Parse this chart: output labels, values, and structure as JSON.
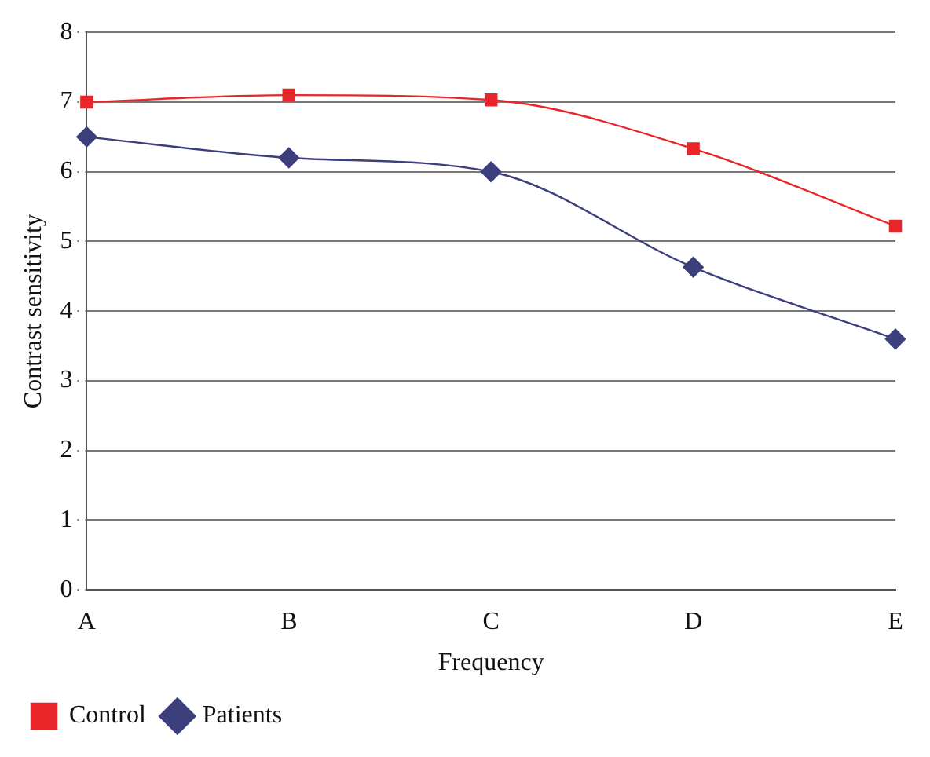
{
  "chart_data": {
    "type": "line",
    "xlabel": "Frequency",
    "ylabel": "Contrast sensitivity",
    "categories": [
      "A",
      "B",
      "C",
      "D",
      "E"
    ],
    "series": [
      {
        "name": "Control",
        "color": "#e8262a",
        "marker": "square",
        "values": [
          7.0,
          7.1,
          7.03,
          6.33,
          5.22
        ]
      },
      {
        "name": "Patients",
        "color": "#3c3f7c",
        "marker": "diamond",
        "values": [
          6.5,
          6.2,
          6.0,
          4.63,
          3.6
        ]
      }
    ],
    "ylim": [
      0,
      8
    ],
    "yticks": [
      0,
      1,
      2,
      3,
      4,
      5,
      6,
      7,
      8
    ],
    "grid": "y",
    "legend": "bottom left"
  }
}
